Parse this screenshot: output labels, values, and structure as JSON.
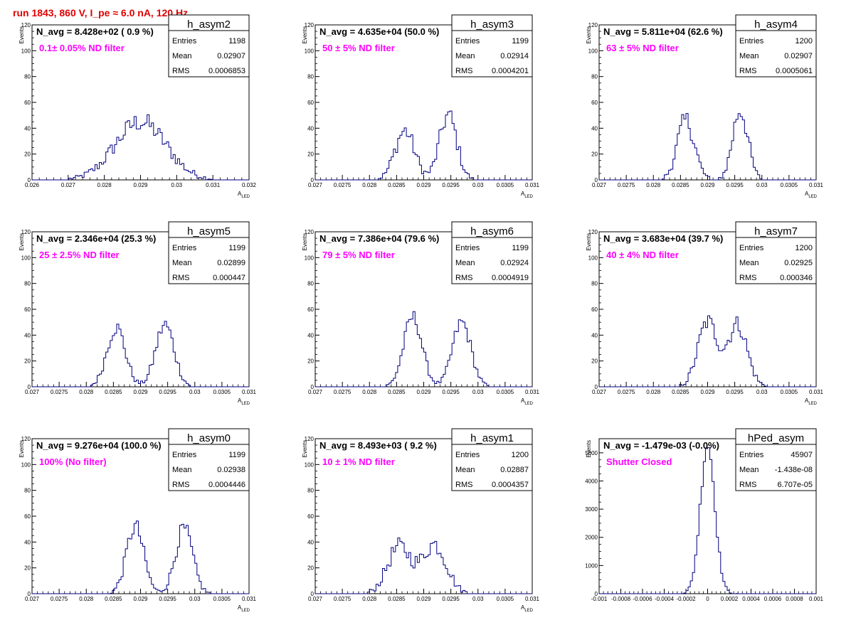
{
  "header": {
    "run_label": "run 1843,   860 V, I_pe ≈ 6.0 nA, 120 Hz"
  },
  "colors": {
    "histogram": "#00007f",
    "annotation": "#ff00ff",
    "header": "#e00000"
  },
  "chart_data": [
    {
      "type": "bar",
      "name": "h_asym2",
      "navg_label": "N_avg = 8.428e+02 ( 0.9 %)",
      "filter_label": "0.1± 0.05% ND filter",
      "stats": {
        "entries_label": "Entries",
        "entries": "1198",
        "mean_label": "Mean",
        "mean": "0.02907",
        "rms_label": "RMS",
        "rms": "0.0006853"
      },
      "xlabel": "A",
      "xlabel_sub": "LED",
      "ylabel": "Events",
      "xlim": [
        0.026,
        0.032
      ],
      "ylim": [
        0,
        120
      ],
      "xticks": [
        0.026,
        0.027,
        0.028,
        0.029,
        0.03,
        0.031,
        0.032
      ],
      "xtick_labels": [
        "0.026",
        "0.027",
        "0.028",
        "0.029",
        "0.03",
        "0.031",
        "0.032"
      ],
      "yticks": [
        0,
        20,
        40,
        60,
        80,
        100,
        120
      ],
      "ytick_labels": [
        "0",
        "20",
        "40",
        "60",
        "80",
        "100",
        "120"
      ],
      "profile": {
        "peaks": [
          [
            0.029,
            45,
            0.0007
          ]
        ],
        "noise": 8
      }
    },
    {
      "type": "bar",
      "name": "h_asym3",
      "navg_label": "N_avg = 4.635e+04 (50.0 %)",
      "filter_label": "50 ± 5% ND filter",
      "stats": {
        "entries_label": "Entries",
        "entries": "1199",
        "mean_label": "Mean",
        "mean": "0.02914",
        "rms_label": "RMS",
        "rms": "0.0004201"
      },
      "xlabel": "A",
      "xlabel_sub": "LED",
      "ylabel": "Events",
      "xlim": [
        0.027,
        0.031
      ],
      "ylim": [
        0,
        120
      ],
      "xticks": [
        0.027,
        0.0275,
        0.028,
        0.0285,
        0.029,
        0.0295,
        0.03,
        0.0305,
        0.031
      ],
      "xtick_labels": [
        "0.027",
        "0.0275",
        "0.028",
        "0.0285",
        "0.029",
        "0.0295",
        "0.03",
        "0.0305",
        "0.031"
      ],
      "yticks": [
        0,
        20,
        40,
        60,
        80,
        100,
        120
      ],
      "ytick_labels": [
        "0",
        "20",
        "40",
        "60",
        "80",
        "100",
        "120"
      ],
      "profile": {
        "peaks": [
          [
            0.02865,
            38,
            0.00018
          ],
          [
            0.02945,
            50,
            0.00016
          ]
        ],
        "noise": 7
      }
    },
    {
      "type": "bar",
      "name": "h_asym4",
      "navg_label": "N_avg = 5.811e+04 (62.6 %)",
      "filter_label": "63 ± 5% ND filter",
      "stats": {
        "entries_label": "Entries",
        "entries": "1200",
        "mean_label": "Mean",
        "mean": "0.02907",
        "rms_label": "RMS",
        "rms": "0.0005061"
      },
      "xlabel": "A",
      "xlabel_sub": "LED",
      "ylabel": "Events",
      "xlim": [
        0.027,
        0.031
      ],
      "ylim": [
        0,
        120
      ],
      "xticks": [
        0.027,
        0.0275,
        0.028,
        0.0285,
        0.029,
        0.0295,
        0.03,
        0.0305,
        0.031
      ],
      "xtick_labels": [
        "0.027",
        "0.0275",
        "0.028",
        "0.0285",
        "0.029",
        "0.0295",
        "0.03",
        "0.0305",
        "0.031"
      ],
      "yticks": [
        0,
        20,
        40,
        60,
        80,
        100,
        120
      ],
      "ytick_labels": [
        "0",
        "20",
        "40",
        "60",
        "80",
        "100",
        "120"
      ],
      "profile": {
        "peaks": [
          [
            0.0286,
            46,
            0.00016
          ],
          [
            0.0296,
            54,
            0.00014
          ]
        ],
        "noise": 8
      }
    },
    {
      "type": "bar",
      "name": "h_asym5",
      "navg_label": "N_avg = 2.346e+04 (25.3 %)",
      "filter_label": "25 ± 2.5% ND filter",
      "stats": {
        "entries_label": "Entries",
        "entries": "1199",
        "mean_label": "Mean",
        "mean": "0.02899",
        "rms_label": "RMS",
        "rms": "0.000447"
      },
      "xlabel": "A",
      "xlabel_sub": "LED",
      "ylabel": "Events",
      "xlim": [
        0.027,
        0.031
      ],
      "ylim": [
        0,
        120
      ],
      "xticks": [
        0.027,
        0.0275,
        0.028,
        0.0285,
        0.029,
        0.0295,
        0.03,
        0.0305,
        0.031
      ],
      "xtick_labels": [
        "0.027",
        "0.0275",
        "0.028",
        "0.0285",
        "0.029",
        "0.0295",
        "0.03",
        "0.0305",
        "0.031"
      ],
      "yticks": [
        0,
        20,
        40,
        60,
        80,
        100,
        120
      ],
      "ytick_labels": [
        "0",
        "20",
        "40",
        "60",
        "80",
        "100",
        "120"
      ],
      "profile": {
        "peaks": [
          [
            0.02855,
            46,
            0.00017
          ],
          [
            0.02945,
            48,
            0.00017
          ]
        ],
        "noise": 6
      }
    },
    {
      "type": "bar",
      "name": "h_asym6",
      "navg_label": "N_avg = 7.386e+04 (79.6 %)",
      "filter_label": "79 ± 5% ND filter",
      "stats": {
        "entries_label": "Entries",
        "entries": "1199",
        "mean_label": "Mean",
        "mean": "0.02924",
        "rms_label": "RMS",
        "rms": "0.0004919"
      },
      "xlabel": "A",
      "xlabel_sub": "LED",
      "ylabel": "Events",
      "xlim": [
        0.027,
        0.031
      ],
      "ylim": [
        0,
        120
      ],
      "xticks": [
        0.027,
        0.0275,
        0.028,
        0.0285,
        0.029,
        0.0295,
        0.03,
        0.0305,
        0.031
      ],
      "xtick_labels": [
        "0.027",
        "0.0275",
        "0.028",
        "0.0285",
        "0.029",
        "0.0295",
        "0.03",
        "0.0305",
        "0.031"
      ],
      "yticks": [
        0,
        20,
        40,
        60,
        80,
        100,
        120
      ],
      "ytick_labels": [
        "0",
        "20",
        "40",
        "60",
        "80",
        "100",
        "120"
      ],
      "profile": {
        "peaks": [
          [
            0.0288,
            54,
            0.00017
          ],
          [
            0.0297,
            50,
            0.00017
          ]
        ],
        "noise": 6
      }
    },
    {
      "type": "bar",
      "name": "h_asym7",
      "navg_label": "N_avg = 3.683e+04 (39.7 %)",
      "filter_label": "40 ± 4% ND filter",
      "stats": {
        "entries_label": "Entries",
        "entries": "1200",
        "mean_label": "Mean",
        "mean": "0.02925",
        "rms_label": "RMS",
        "rms": "0.000346"
      },
      "xlabel": "A",
      "xlabel_sub": "LED",
      "ylabel": "Events",
      "xlim": [
        0.027,
        0.031
      ],
      "ylim": [
        0,
        120
      ],
      "xticks": [
        0.027,
        0.0275,
        0.028,
        0.0285,
        0.029,
        0.0295,
        0.03,
        0.0305,
        0.031
      ],
      "xtick_labels": [
        "0.027",
        "0.0275",
        "0.028",
        "0.0285",
        "0.029",
        "0.0295",
        "0.03",
        "0.0305",
        "0.031"
      ],
      "yticks": [
        0,
        20,
        40,
        60,
        80,
        100,
        120
      ],
      "ytick_labels": [
        "0",
        "20",
        "40",
        "60",
        "80",
        "100",
        "120"
      ],
      "profile": {
        "peaks": [
          [
            0.029,
            50,
            0.00018
          ],
          [
            0.02955,
            48,
            0.00018
          ]
        ],
        "noise": 7
      }
    },
    {
      "type": "bar",
      "name": "h_asym0",
      "navg_label": "N_avg = 9.276e+04 (100.0 %)",
      "filter_label": "100% (No filter)",
      "stats": {
        "entries_label": "Entries",
        "entries": "1199",
        "mean_label": "Mean",
        "mean": "0.02938",
        "rms_label": "RMS",
        "rms": "0.0004446"
      },
      "xlabel": "A",
      "xlabel_sub": "LED",
      "ylabel": "Events",
      "xlim": [
        0.027,
        0.031
      ],
      "ylim": [
        0,
        120
      ],
      "xticks": [
        0.027,
        0.0275,
        0.028,
        0.0285,
        0.029,
        0.0295,
        0.03,
        0.0305,
        0.031
      ],
      "xtick_labels": [
        "0.027",
        "0.0275",
        "0.028",
        "0.0285",
        "0.029",
        "0.0295",
        "0.03",
        "0.0305",
        "0.031"
      ],
      "yticks": [
        0,
        20,
        40,
        60,
        80,
        100,
        120
      ],
      "ytick_labels": [
        "0",
        "20",
        "40",
        "60",
        "80",
        "100",
        "120"
      ],
      "profile": {
        "peaks": [
          [
            0.0289,
            52,
            0.00016
          ],
          [
            0.0298,
            50,
            0.00016
          ]
        ],
        "noise": 7
      }
    },
    {
      "type": "bar",
      "name": "h_asym1",
      "navg_label": "N_avg = 8.493e+03 ( 9.2 %)",
      "filter_label": "10 ± 1% ND filter",
      "stats": {
        "entries_label": "Entries",
        "entries": "1200",
        "mean_label": "Mean",
        "mean": "0.02887",
        "rms_label": "RMS",
        "rms": "0.0004357"
      },
      "xlabel": "A",
      "xlabel_sub": "LED",
      "ylabel": "Events",
      "xlim": [
        0.027,
        0.031
      ],
      "ylim": [
        0,
        120
      ],
      "xticks": [
        0.027,
        0.0275,
        0.028,
        0.0285,
        0.029,
        0.0295,
        0.03,
        0.0305,
        0.031
      ],
      "xtick_labels": [
        "0.027",
        "0.0275",
        "0.028",
        "0.0285",
        "0.029",
        "0.0295",
        "0.03",
        "0.0305",
        "0.031"
      ],
      "yticks": [
        0,
        20,
        40,
        60,
        80,
        100,
        120
      ],
      "ytick_labels": [
        "0",
        "20",
        "40",
        "60",
        "80",
        "100",
        "120"
      ],
      "profile": {
        "peaks": [
          [
            0.02855,
            36,
            0.00022
          ],
          [
            0.0292,
            38,
            0.00022
          ]
        ],
        "noise": 7
      }
    },
    {
      "type": "bar",
      "name": "hPed_asym",
      "navg_label": "N_avg = -1.479e-03 (-0.0%)",
      "filter_label": "Shutter Closed",
      "stats": {
        "entries_label": "Entries",
        "entries": "45907",
        "mean_label": "Mean",
        "mean": "-1.438e-08",
        "rms_label": "RMS",
        "rms": "6.707e-05"
      },
      "xlabel": "",
      "xlabel_sub": "",
      "ylabel": "Events",
      "xlim": [
        -0.001,
        0.001
      ],
      "ylim": [
        0,
        5500
      ],
      "xticks": [
        -0.001,
        -0.0008,
        -0.0006,
        -0.0004,
        -0.0002,
        0,
        0.0002,
        0.0004,
        0.0006,
        0.0008,
        0.001
      ],
      "xtick_labels": [
        "-0.001",
        "-0.0008",
        "-0.0006",
        "-0.0004",
        "-0.0002",
        "0",
        "0.0002",
        "0.0004",
        "0.0006",
        "0.0008",
        "0.001"
      ],
      "yticks": [
        0,
        1000,
        2000,
        3000,
        4000,
        5000
      ],
      "ytick_labels": [
        "0",
        "1000",
        "2000",
        "3000",
        "4000",
        "5000"
      ],
      "profile": {
        "peaks": [
          [
            0,
            5300,
            6.7e-05
          ]
        ],
        "noise": 250
      }
    }
  ]
}
